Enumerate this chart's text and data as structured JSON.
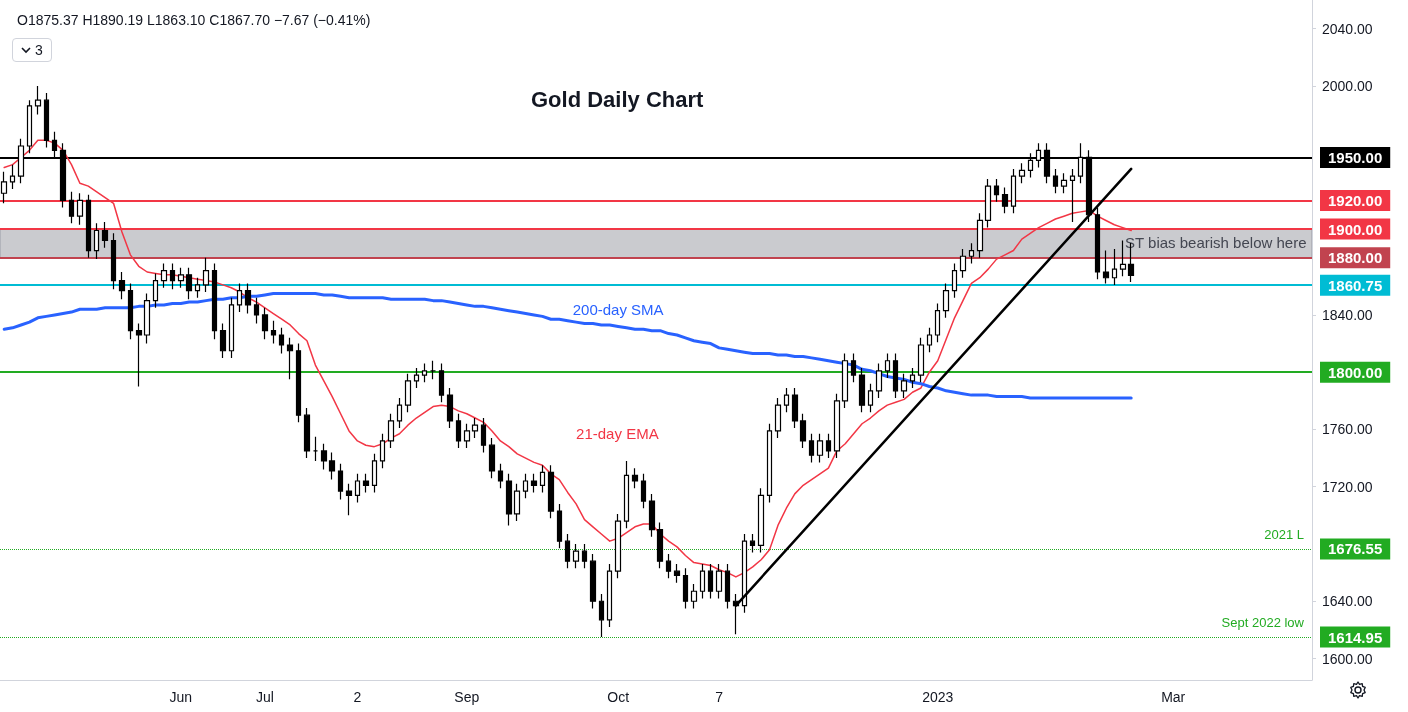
{
  "chart_data": {
    "type": "candlestick",
    "title": "Gold Daily Chart",
    "color": "#000000",
    "marker": "none",
    "legend": false,
    "grid": false,
    "categories": [
      null,
      null,
      null,
      null,
      null,
      null,
      null,
      null,
      null,
      null,
      null,
      null,
      null,
      null,
      null,
      null,
      null,
      null,
      null,
      null,
      null,
      "Jun",
      null,
      null,
      null,
      null,
      null,
      null,
      null,
      null,
      null,
      "Jul",
      null,
      null,
      null,
      null,
      null,
      null,
      null,
      null,
      null,
      null,
      "2",
      null,
      null,
      null,
      null,
      null,
      null,
      null,
      null,
      null,
      null,
      null,
      null,
      "Sep",
      null,
      null,
      null,
      null,
      null,
      null,
      null,
      null,
      null,
      null,
      null,
      null,
      null,
      null,
      null,
      null,
      null,
      "Oct",
      null,
      null,
      null,
      null,
      null,
      null,
      null,
      null,
      null,
      null,
      null,
      "7",
      null,
      null,
      null,
      null,
      null,
      null,
      null,
      null,
      null,
      null,
      null,
      null,
      null,
      null,
      null,
      null,
      null,
      null,
      null,
      null,
      null,
      null,
      null,
      null,
      null,
      "2023",
      null,
      null,
      null,
      null,
      null,
      null,
      null,
      null,
      null,
      null,
      null,
      null,
      null,
      null,
      null,
      null,
      null,
      null,
      null,
      null,
      null,
      null,
      null,
      null,
      null,
      null,
      null,
      "Mar",
      null,
      null,
      null,
      null,
      null,
      null,
      null,
      null,
      null,
      null,
      null,
      null,
      null,
      null,
      null,
      null
    ],
    "ohlc": [
      [
        1925,
        1940,
        1918,
        1933
      ],
      [
        1933,
        1945,
        1928,
        1937
      ],
      [
        1937,
        1963,
        1932,
        1958
      ],
      [
        1958,
        1990,
        1953,
        1986
      ],
      [
        1986,
        2000,
        1980,
        1990
      ],
      [
        1990,
        1995,
        1957,
        1962
      ],
      [
        1962,
        1968,
        1950,
        1955
      ],
      [
        1955,
        1960,
        1915,
        1920
      ],
      [
        1920,
        1926,
        1904,
        1909
      ],
      [
        1909,
        1925,
        1903,
        1920
      ],
      [
        1920,
        1924,
        1880,
        1885
      ],
      [
        1885,
        1904,
        1879,
        1899
      ],
      [
        1899,
        1905,
        1887,
        1892
      ],
      [
        1892,
        1897,
        1858,
        1864
      ],
      [
        1864,
        1870,
        1851,
        1857
      ],
      [
        1857,
        1862,
        1823,
        1829
      ],
      [
        1829,
        1834,
        1790,
        1826
      ],
      [
        1826,
        1855,
        1820,
        1850
      ],
      [
        1850,
        1869,
        1845,
        1864
      ],
      [
        1864,
        1876,
        1859,
        1871
      ],
      [
        1871,
        1876,
        1858,
        1864
      ],
      [
        1864,
        1873,
        1859,
        1868
      ],
      [
        1868,
        1873,
        1851,
        1857
      ],
      [
        1857,
        1866,
        1852,
        1861
      ],
      [
        1861,
        1880,
        1856,
        1871
      ],
      [
        1871,
        1876,
        1823,
        1829
      ],
      [
        1829,
        1834,
        1810,
        1815
      ],
      [
        1815,
        1852,
        1810,
        1847
      ],
      [
        1847,
        1862,
        1842,
        1857
      ],
      [
        1857,
        1862,
        1841,
        1847
      ],
      [
        1847,
        1852,
        1834,
        1840
      ],
      [
        1840,
        1845,
        1823,
        1829
      ],
      [
        1829,
        1836,
        1820,
        1826
      ],
      [
        1826,
        1831,
        1813,
        1819
      ],
      [
        1819,
        1824,
        1795,
        1815
      ],
      [
        1815,
        1820,
        1765,
        1770
      ],
      [
        1770,
        1775,
        1740,
        1745
      ],
      [
        1745,
        1755,
        1738,
        1745
      ],
      [
        1745,
        1750,
        1732,
        1738
      ],
      [
        1738,
        1744,
        1725,
        1731
      ],
      [
        1731,
        1736,
        1711,
        1717
      ],
      [
        1717,
        1722,
        1700,
        1714
      ],
      [
        1714,
        1729,
        1709,
        1724
      ],
      [
        1724,
        1729,
        1716,
        1721
      ],
      [
        1721,
        1743,
        1716,
        1738
      ],
      [
        1738,
        1757,
        1733,
        1752
      ],
      [
        1752,
        1771,
        1747,
        1766
      ],
      [
        1766,
        1782,
        1761,
        1777
      ],
      [
        1777,
        1799,
        1772,
        1794
      ],
      [
        1794,
        1803,
        1789,
        1798
      ],
      [
        1798,
        1806,
        1793,
        1801
      ],
      [
        1801,
        1808,
        1795,
        1801
      ],
      [
        1801,
        1806,
        1779,
        1784
      ],
      [
        1784,
        1789,
        1761,
        1766
      ],
      [
        1766,
        1771,
        1747,
        1752
      ],
      [
        1752,
        1764,
        1747,
        1759
      ],
      [
        1759,
        1768,
        1754,
        1763
      ],
      [
        1763,
        1768,
        1744,
        1749
      ],
      [
        1749,
        1754,
        1726,
        1731
      ],
      [
        1731,
        1736,
        1719,
        1724
      ],
      [
        1724,
        1729,
        1693,
        1701
      ],
      [
        1701,
        1722,
        1696,
        1717
      ],
      [
        1717,
        1729,
        1712,
        1724
      ],
      [
        1724,
        1729,
        1716,
        1721
      ],
      [
        1721,
        1735,
        1716,
        1730
      ],
      [
        1730,
        1735,
        1698,
        1703
      ],
      [
        1703,
        1708,
        1677,
        1682
      ],
      [
        1682,
        1687,
        1663,
        1668
      ],
      [
        1668,
        1680,
        1663,
        1675
      ],
      [
        1675,
        1680,
        1663,
        1668
      ],
      [
        1668,
        1673,
        1635,
        1640
      ],
      [
        1640,
        1645,
        1615,
        1627
      ],
      [
        1627,
        1666,
        1622,
        1661
      ],
      [
        1661,
        1701,
        1656,
        1696
      ],
      [
        1696,
        1738,
        1691,
        1728
      ],
      [
        1728,
        1733,
        1719,
        1724
      ],
      [
        1724,
        1729,
        1705,
        1710
      ],
      [
        1710,
        1715,
        1685,
        1690
      ],
      [
        1690,
        1695,
        1663,
        1668
      ],
      [
        1668,
        1673,
        1656,
        1661
      ],
      [
        1661,
        1666,
        1653,
        1658
      ],
      [
        1658,
        1663,
        1635,
        1640
      ],
      [
        1640,
        1652,
        1635,
        1647
      ],
      [
        1647,
        1666,
        1642,
        1661
      ],
      [
        1661,
        1666,
        1642,
        1647
      ],
      [
        1647,
        1666,
        1642,
        1661
      ],
      [
        1661,
        1666,
        1635,
        1640
      ],
      [
        1640,
        1645,
        1617,
        1637
      ],
      [
        1637,
        1687,
        1632,
        1682
      ],
      [
        1682,
        1687,
        1674,
        1679
      ],
      [
        1679,
        1719,
        1674,
        1714
      ],
      [
        1714,
        1764,
        1709,
        1759
      ],
      [
        1759,
        1782,
        1754,
        1777
      ],
      [
        1777,
        1789,
        1772,
        1784
      ],
      [
        1784,
        1789,
        1761,
        1766
      ],
      [
        1766,
        1771,
        1747,
        1752
      ],
      [
        1752,
        1757,
        1737,
        1742
      ],
      [
        1742,
        1757,
        1737,
        1752
      ],
      [
        1752,
        1757,
        1740,
        1745
      ],
      [
        1745,
        1785,
        1740,
        1780
      ],
      [
        1780,
        1813,
        1775,
        1808
      ],
      [
        1808,
        1813,
        1793,
        1798
      ],
      [
        1798,
        1803,
        1772,
        1777
      ],
      [
        1777,
        1792,
        1772,
        1787
      ],
      [
        1787,
        1806,
        1782,
        1801
      ],
      [
        1801,
        1813,
        1796,
        1808
      ],
      [
        1808,
        1813,
        1782,
        1787
      ],
      [
        1787,
        1799,
        1782,
        1794
      ],
      [
        1794,
        1803,
        1789,
        1798
      ],
      [
        1798,
        1824,
        1793,
        1819
      ],
      [
        1819,
        1831,
        1814,
        1826
      ],
      [
        1826,
        1848,
        1821,
        1843
      ],
      [
        1843,
        1862,
        1838,
        1857
      ],
      [
        1857,
        1876,
        1852,
        1871
      ],
      [
        1871,
        1886,
        1866,
        1881
      ],
      [
        1881,
        1890,
        1876,
        1885
      ],
      [
        1885,
        1911,
        1880,
        1906
      ],
      [
        1906,
        1935,
        1901,
        1930
      ],
      [
        1930,
        1935,
        1919,
        1924
      ],
      [
        1924,
        1929,
        1911,
        1916
      ],
      [
        1916,
        1942,
        1911,
        1937
      ],
      [
        1937,
        1946,
        1932,
        1941
      ],
      [
        1941,
        1953,
        1936,
        1948
      ],
      [
        1948,
        1960,
        1943,
        1955
      ],
      [
        1955,
        1960,
        1932,
        1937
      ],
      [
        1937,
        1942,
        1925,
        1930
      ],
      [
        1930,
        1939,
        1925,
        1934
      ],
      [
        1934,
        1942,
        1905,
        1937
      ],
      [
        1937,
        1960,
        1932,
        1950
      ],
      [
        1950,
        1955,
        1905,
        1910
      ],
      [
        1910,
        1915,
        1865,
        1870
      ],
      [
        1870,
        1885,
        1862,
        1866
      ],
      [
        1866,
        1886,
        1861,
        1872
      ],
      [
        1872,
        1892,
        1867,
        1875.37
      ],
      [
        1875.37,
        1890.19,
        1863.1,
        1867.7
      ],
      null,
      null,
      null,
      null,
      null,
      null,
      null,
      null,
      null,
      null,
      null,
      null,
      null,
      null,
      null,
      null,
      null,
      null,
      null,
      null,
      null
    ],
    "series": [
      {
        "name": "21-day EMA",
        "type": "line",
        "color": "#f23645",
        "values": [
          1943,
          1945,
          1950,
          1955,
          1962,
          1962,
          1960,
          1955,
          1945,
          1932,
          1930,
          1926,
          1922,
          1918,
          1898,
          1882,
          1874,
          1870,
          1869,
          1868,
          1868,
          1867,
          1866,
          1865,
          1864,
          1863,
          1861,
          1859,
          1856,
          1852,
          1849,
          1845,
          1841,
          1837,
          1833,
          1827,
          1822,
          1805,
          1794,
          1783,
          1771,
          1759,
          1752,
          1749,
          1748,
          1750,
          1754,
          1757,
          1763,
          1768,
          1772,
          1776,
          1777,
          1776,
          1773,
          1771,
          1768,
          1765,
          1759,
          1752,
          1748,
          1743,
          1740,
          1737,
          1735,
          1729,
          1725,
          1716,
          1708,
          1697,
          1692,
          1687,
          1682,
          1684,
          1688,
          1692,
          1694,
          1694,
          1687,
          1682,
          1678,
          1672,
          1667,
          1666,
          1665,
          1662,
          1660,
          1657,
          1660,
          1664,
          1669,
          1676,
          1693,
          1705,
          1715,
          1721,
          1725,
          1729,
          1733,
          1745,
          1750,
          1757,
          1764,
          1768,
          1773,
          1777,
          1779,
          1781,
          1786,
          1789,
          1800,
          1808,
          1823,
          1838,
          1850,
          1862,
          1866,
          1872,
          1879,
          1882,
          1885,
          1893,
          1897,
          1901,
          1904,
          1907,
          1909,
          1911,
          1912,
          1913,
          1909,
          1906,
          1903,
          1901,
          1899,
          null,
          null,
          null,
          null,
          null,
          null,
          null,
          null,
          null,
          null,
          null,
          null,
          null,
          null,
          null,
          null,
          null,
          null,
          null,
          null,
          null
        ]
      },
      {
        "name": "200-day SMA",
        "type": "line",
        "color": "#2962ff",
        "values": [
          1830,
          1831,
          1833,
          1835,
          1838,
          1839,
          1840,
          1841,
          1842,
          1844,
          1844,
          1844,
          1845,
          1845,
          1845,
          1845,
          1846,
          1846,
          1847,
          1847,
          1848,
          1848,
          1849,
          1849,
          1850,
          1851,
          1851,
          1852,
          1852,
          1853,
          1853,
          1854,
          1855,
          1855,
          1855,
          1855,
          1855,
          1855,
          1854,
          1854,
          1853,
          1852,
          1852,
          1852,
          1852,
          1852,
          1851,
          1851,
          1851,
          1851,
          1851,
          1850,
          1850,
          1849,
          1848,
          1847,
          1846,
          1846,
          1845,
          1844,
          1843,
          1842,
          1841,
          1840,
          1839,
          1837,
          1837,
          1836,
          1835,
          1834,
          1834,
          1833,
          1833,
          1832,
          1831,
          1830,
          1830,
          1829,
          1829,
          1827,
          1826,
          1824,
          1822,
          1821,
          1820,
          1817,
          1816,
          1815,
          1814,
          1813,
          1813,
          1813,
          1812,
          1812,
          1811,
          1811,
          1810,
          1809,
          1808,
          1807,
          1806,
          1805,
          1802,
          1801,
          1799,
          1797,
          1796,
          1795,
          1793,
          1792,
          1790,
          1789,
          1787,
          1786,
          1785,
          1784,
          1784,
          1784,
          1783,
          1783,
          1783,
          1783,
          1782,
          1782,
          1782,
          1782,
          1782,
          1782,
          1782,
          1782,
          1782,
          1782,
          1782,
          1782,
          1782,
          null,
          null,
          null,
          null,
          null,
          null,
          null,
          null,
          null,
          null,
          null,
          null,
          null,
          null,
          null,
          null,
          null,
          null,
          null,
          null,
          null
        ]
      },
      {
        "type": "line",
        "color": "#000000",
        "values": [
          null,
          null,
          null,
          null,
          null,
          null,
          null,
          null,
          null,
          null,
          null,
          null,
          null,
          null,
          null,
          null,
          null,
          null,
          null,
          null,
          null,
          null,
          null,
          null,
          null,
          null,
          null,
          null,
          null,
          null,
          null,
          null,
          null,
          null,
          null,
          null,
          null,
          null,
          null,
          null,
          null,
          null,
          null,
          null,
          null,
          null,
          null,
          null,
          null,
          null,
          null,
          null,
          null,
          null,
          null,
          null,
          null,
          null,
          null,
          null,
          null,
          null,
          null,
          null,
          null,
          null,
          null,
          null,
          null,
          null,
          null,
          null,
          null,
          null,
          null,
          null,
          null,
          null,
          null,
          null,
          null,
          null,
          null,
          null,
          null,
          null,
          null,
          1637,
          null,
          null,
          null,
          null,
          null,
          null,
          null,
          null,
          null,
          null,
          null,
          null,
          null,
          null,
          null,
          null,
          null,
          null,
          null,
          null,
          null,
          null,
          null,
          null,
          null,
          null,
          null,
          null,
          null,
          null,
          null,
          null,
          null,
          null,
          null,
          null,
          null,
          null,
          null,
          null,
          null,
          null,
          null,
          null,
          null,
          null,
          1942,
          null,
          null,
          null,
          null,
          null,
          null,
          null,
          null,
          null,
          null,
          null,
          null,
          null,
          null,
          null,
          null,
          null,
          null,
          null,
          null,
          null
        ]
      }
    ],
    "ylim": [
      1585,
      2060
    ],
    "yticks": [
      {
        "value": 1600,
        "label": "1600.00"
      },
      {
        "value": 1640,
        "label": "1640.00"
      },
      {
        "value": 1720,
        "label": "1720.00"
      },
      {
        "value": 1760,
        "label": "1760.00"
      },
      {
        "value": 1840,
        "label": "1840.00"
      },
      {
        "value": 2000,
        "label": "2000.00"
      },
      {
        "value": 2040,
        "label": "2040.00"
      }
    ],
    "bands": [
      {
        "axis": "y",
        "from": 1880,
        "to": 1900,
        "label": "ST bias bearish below here",
        "color": "#c4c5ca"
      }
    ],
    "ref_lines": [
      {
        "axis": "y",
        "value": 1950,
        "label": "1950.00",
        "color": "#000000"
      },
      {
        "axis": "y",
        "value": 1920,
        "label": "1920.00",
        "color": "#f23645"
      },
      {
        "axis": "y",
        "value": 1900,
        "label": "1900.00",
        "color": "#f23645"
      },
      {
        "axis": "y",
        "value": 1880,
        "label": "1880.00",
        "color": "#c1434f"
      },
      {
        "axis": "y",
        "value": 1860.75,
        "label": "1860.75",
        "color": "#00bcd4"
      },
      {
        "axis": "y",
        "value": 1800,
        "label": "1800.00",
        "color": "#22ab22"
      },
      {
        "axis": "y",
        "value": 1676.55,
        "label": "1676.55",
        "color": "#22ab22",
        "line_style": "dotted"
      },
      {
        "axis": "y",
        "value": 1614.95,
        "label": "1614.95",
        "color": "#22ab22",
        "line_style": "dotted"
      }
    ],
    "annotations": [
      "O1875.37 H1890.19 L1863.10 C1867.70 −7.67 (−0.41%)",
      "3",
      "2021 L",
      "Sept 2022 low"
    ]
  }
}
